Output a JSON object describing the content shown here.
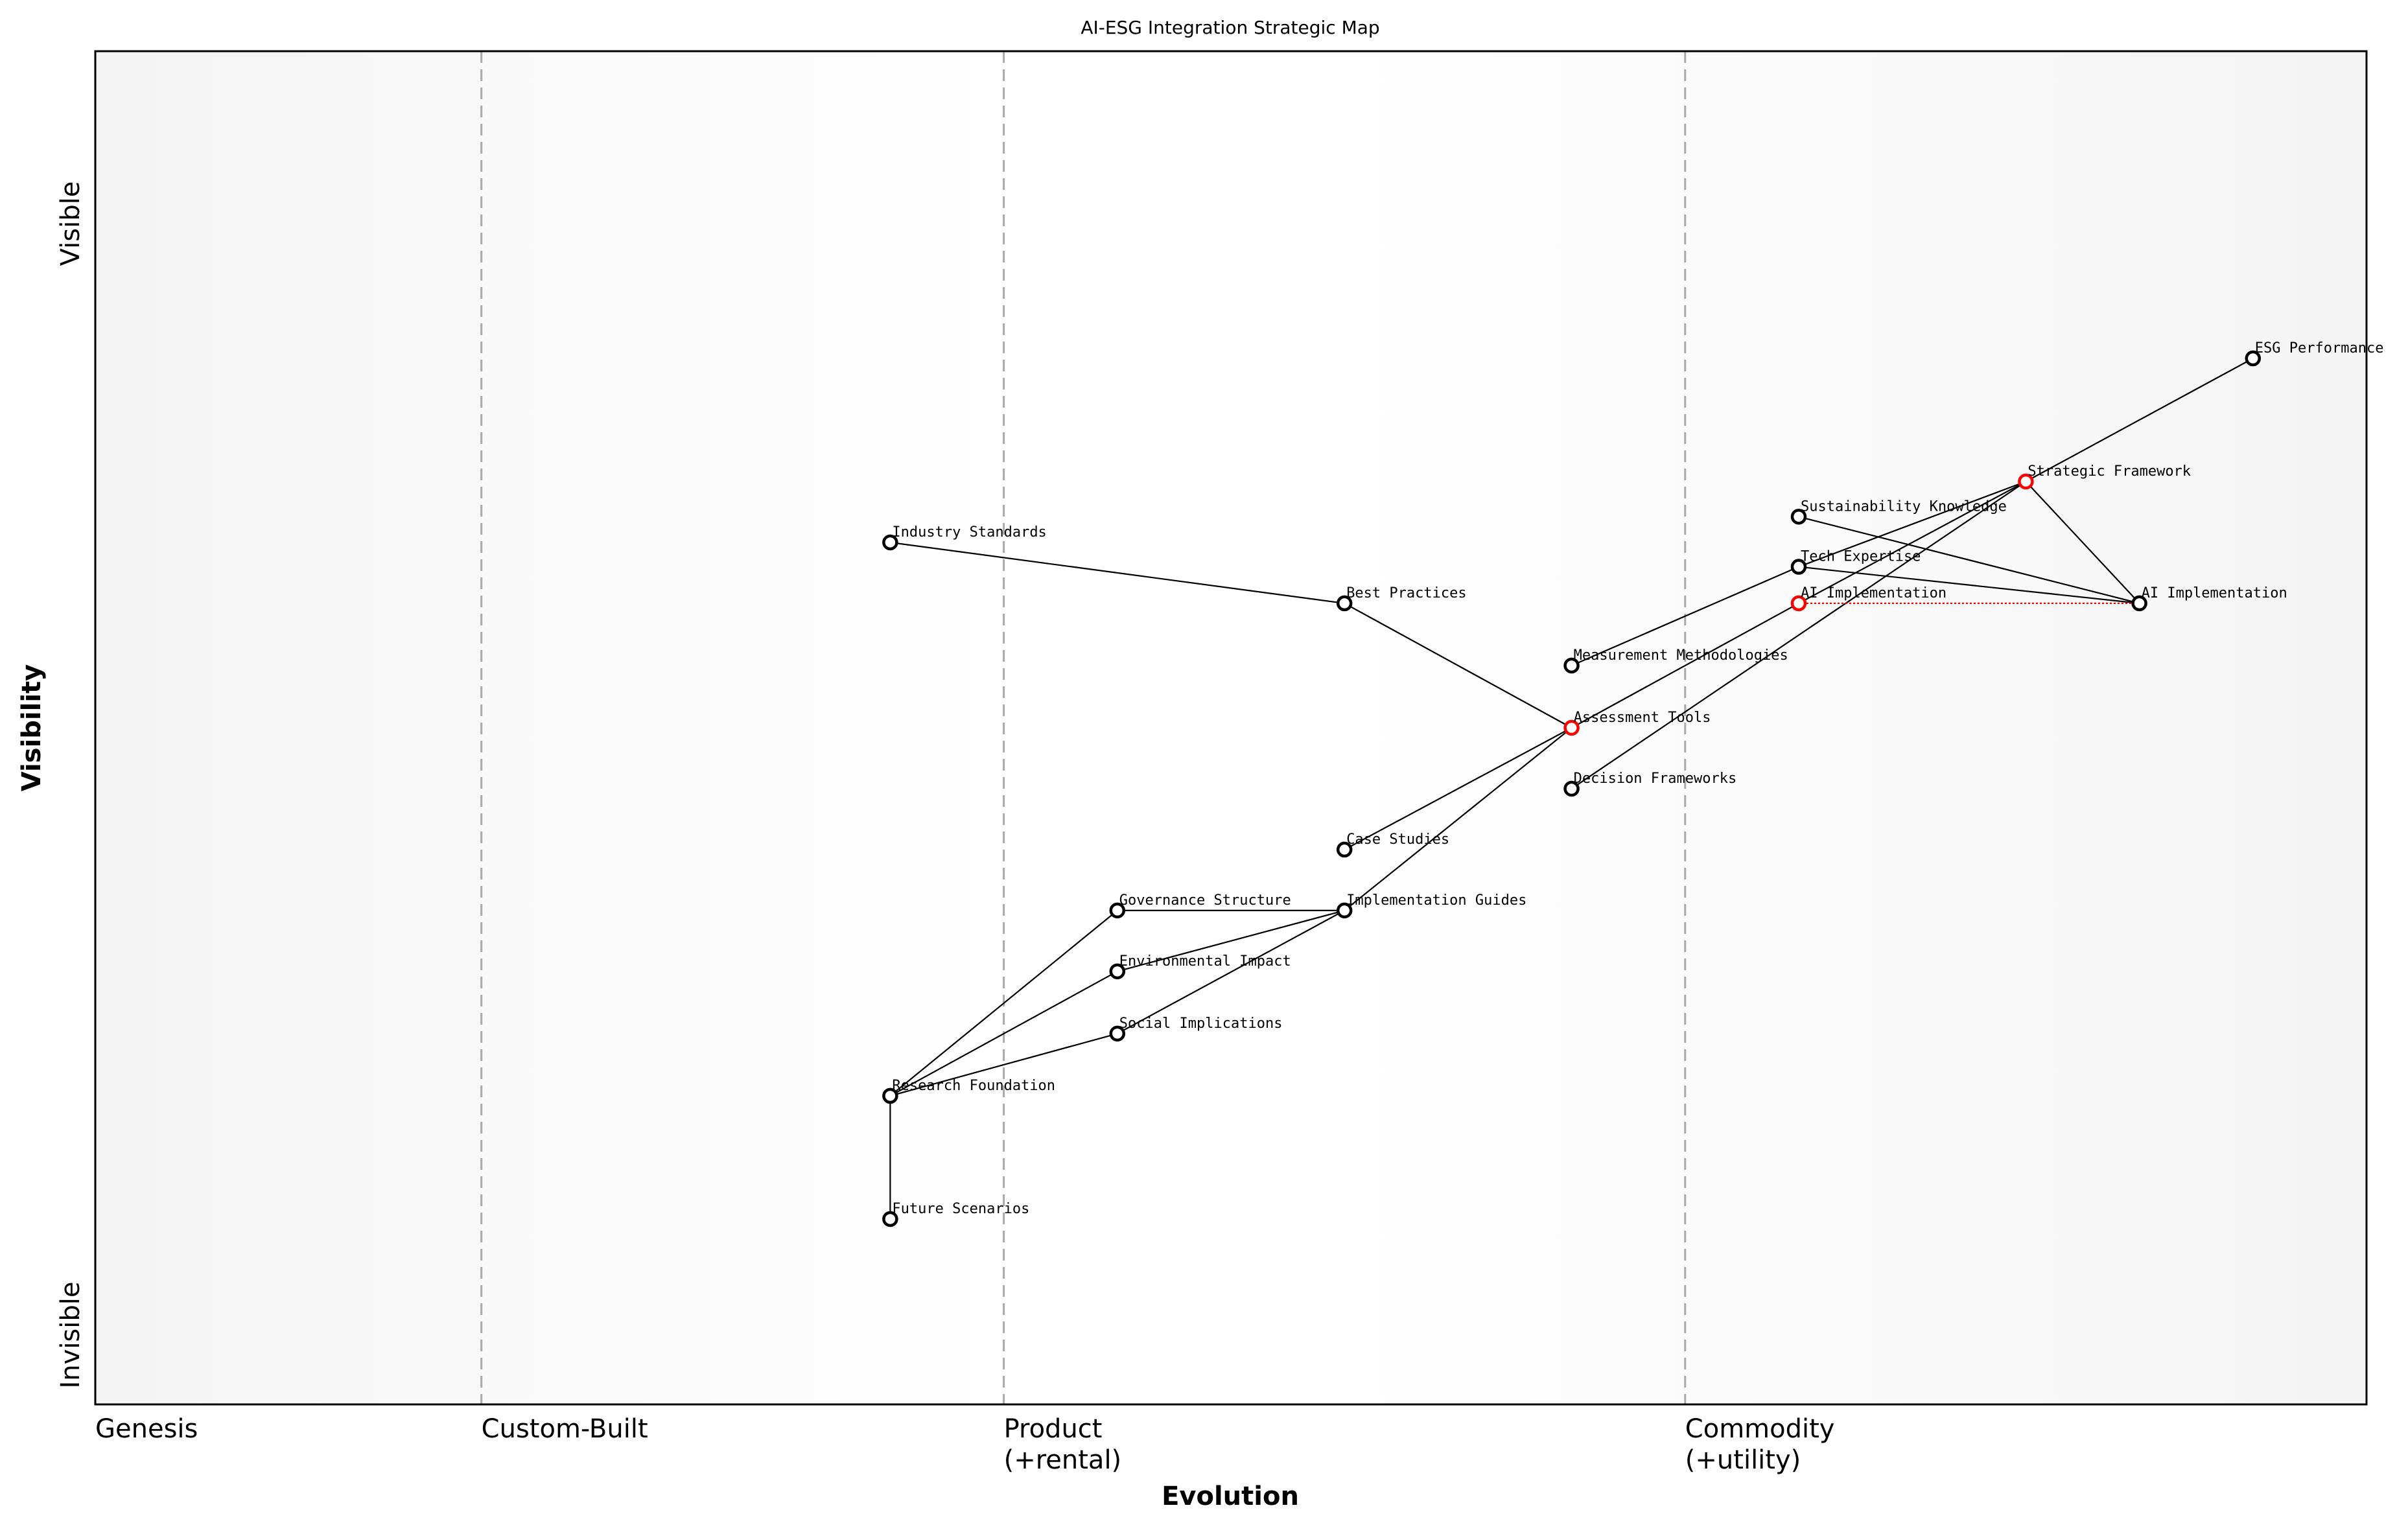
{
  "title": "AI-ESG Integration Strategic Map",
  "x_axis": {
    "label": "Evolution",
    "stages": [
      {
        "label": "Genesis",
        "line2": "",
        "at": 0
      },
      {
        "label": "Custom-Built",
        "line2": "",
        "at": 0.17
      },
      {
        "label": "Product",
        "line2": "(+rental)",
        "at": 0.4
      },
      {
        "label": "Commodity",
        "line2": "(+utility)",
        "at": 0.7
      }
    ]
  },
  "y_axis": {
    "label": "Visibility",
    "top_label": "Visible",
    "bottom_label": "Invisible"
  },
  "colors": {
    "node": "#000000",
    "highlight": "#ff0000",
    "evolution_link": "#ff0000",
    "stage_line": "#aaaaaa",
    "edge_shade": "#f5f5f5"
  },
  "components": [
    {
      "id": "esg",
      "name": "ESG Performance",
      "evolution": 0.95,
      "visibility": 0.773,
      "highlight": false
    },
    {
      "id": "sf",
      "name": "Strategic Framework",
      "evolution": 0.85,
      "visibility": 0.682,
      "highlight": true
    },
    {
      "id": "sk",
      "name": "Sustainability Knowledge",
      "evolution": 0.75,
      "visibility": 0.656,
      "highlight": false
    },
    {
      "id": "te",
      "name": "Tech Expertise",
      "evolution": 0.75,
      "visibility": 0.619,
      "highlight": false
    },
    {
      "id": "ai1",
      "name": "AI Implementation",
      "evolution": 0.75,
      "visibility": 0.592,
      "highlight": true
    },
    {
      "id": "ai2",
      "name": "AI Implementation",
      "evolution": 0.9,
      "visibility": 0.592,
      "highlight": false
    },
    {
      "id": "mm",
      "name": "Measurement Methodologies",
      "evolution": 0.65,
      "visibility": 0.546,
      "highlight": false
    },
    {
      "id": "at",
      "name": "Assessment Tools",
      "evolution": 0.65,
      "visibility": 0.5,
      "highlight": true
    },
    {
      "id": "df",
      "name": "Decision Frameworks",
      "evolution": 0.65,
      "visibility": 0.455,
      "highlight": false
    },
    {
      "id": "is",
      "name": "Industry Standards",
      "evolution": 0.35,
      "visibility": 0.637,
      "highlight": false
    },
    {
      "id": "bp",
      "name": "Best Practices",
      "evolution": 0.55,
      "visibility": 0.592,
      "highlight": false
    },
    {
      "id": "cs",
      "name": "Case Studies",
      "evolution": 0.55,
      "visibility": 0.41,
      "highlight": false
    },
    {
      "id": "ig",
      "name": "Implementation Guides",
      "evolution": 0.55,
      "visibility": 0.365,
      "highlight": false
    },
    {
      "id": "gs",
      "name": "Governance Structure",
      "evolution": 0.45,
      "visibility": 0.365,
      "highlight": false
    },
    {
      "id": "ei",
      "name": "Environmental Impact",
      "evolution": 0.45,
      "visibility": 0.32,
      "highlight": false
    },
    {
      "id": "si",
      "name": "Social Implications",
      "evolution": 0.45,
      "visibility": 0.274,
      "highlight": false
    },
    {
      "id": "rf",
      "name": "Research Foundation",
      "evolution": 0.35,
      "visibility": 0.228,
      "highlight": false
    },
    {
      "id": "fs",
      "name": "Future Scenarios",
      "evolution": 0.35,
      "visibility": 0.137,
      "highlight": false
    }
  ],
  "links": [
    [
      "esg",
      "sf"
    ],
    [
      "sf",
      "te"
    ],
    [
      "sf",
      "ai1"
    ],
    [
      "sf",
      "df"
    ],
    [
      "sf",
      "ai2"
    ],
    [
      "sk",
      "ai2"
    ],
    [
      "te",
      "ai2"
    ],
    [
      "te",
      "mm"
    ],
    [
      "ai1",
      "at"
    ],
    [
      "is",
      "bp"
    ],
    [
      "bp",
      "at"
    ],
    [
      "cs",
      "at"
    ],
    [
      "ig",
      "at"
    ],
    [
      "gs",
      "ig"
    ],
    [
      "ei",
      "ig"
    ],
    [
      "si",
      "ig"
    ],
    [
      "rf",
      "gs"
    ],
    [
      "rf",
      "ei"
    ],
    [
      "rf",
      "si"
    ],
    [
      "rf",
      "fs"
    ]
  ],
  "evolution_links": [
    [
      "ai1",
      "ai2"
    ]
  ]
}
